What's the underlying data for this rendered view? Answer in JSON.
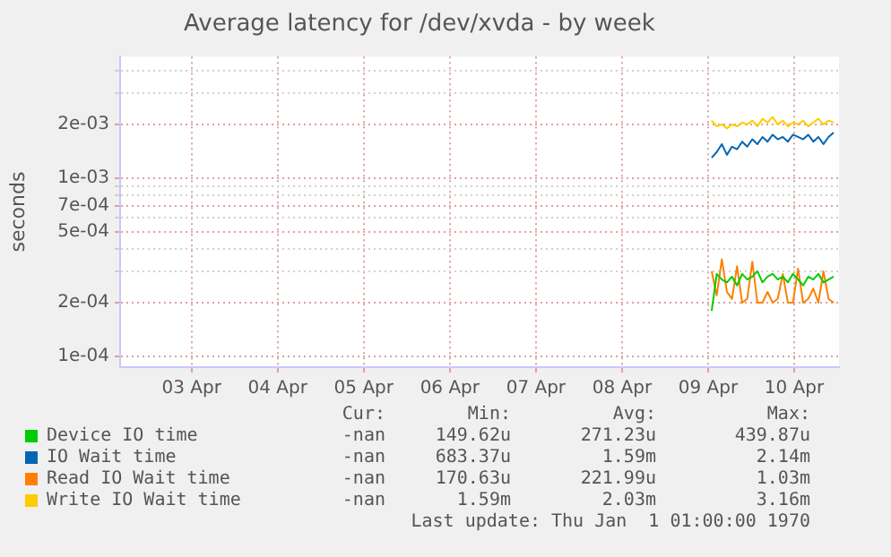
{
  "chart_data": {
    "type": "line",
    "title": "Average latency for /dev/xvda - by week",
    "ylabel": "seconds",
    "log": "y",
    "grid": true,
    "legend": "bottom",
    "marker": "none",
    "line_style": "solid",
    "xlim": [
      "--04-02T16:05",
      "--04-11T00:30"
    ],
    "xticks": [
      {
        "value": "--04-03T12:00",
        "label": "03 Apr"
      },
      {
        "value": "--04-04T12:00",
        "label": "04 Apr"
      },
      {
        "value": "--04-05T12:00",
        "label": "05 Apr"
      },
      {
        "value": "--04-06T12:00",
        "label": "06 Apr"
      },
      {
        "value": "--04-07T12:00",
        "label": "07 Apr"
      },
      {
        "value": "--04-08T12:00",
        "label": "08 Apr"
      },
      {
        "value": "--04-09T12:00",
        "label": "09 Apr"
      },
      {
        "value": "--04-10T12:00",
        "label": "10 Apr"
      }
    ],
    "ylim": [
      8.7e-05,
      0.0048
    ],
    "yticks": [
      {
        "value": 0.0001,
        "label": "1e-04"
      },
      {
        "value": 0.0002,
        "label": "2e-04"
      },
      {
        "value": 0.0003,
        "label": null
      },
      {
        "value": 0.0004,
        "label": null
      },
      {
        "value": 0.0005,
        "label": "5e-04"
      },
      {
        "value": 0.0006,
        "label": null
      },
      {
        "value": 0.0007,
        "label": "7e-04"
      },
      {
        "value": 0.0008,
        "label": null
      },
      {
        "value": 0.0009,
        "label": null
      },
      {
        "value": 0.001,
        "label": "1e-03"
      },
      {
        "value": 0.002,
        "label": "2e-03"
      },
      {
        "value": 0.003,
        "label": null
      },
      {
        "value": 0.004,
        "label": null
      }
    ],
    "x": [
      "--04-09T13:00",
      "--04-09T14:25",
      "--04-09T15:50",
      "--04-09T17:15",
      "--04-09T18:40",
      "--04-09T20:05",
      "--04-09T21:30",
      "--04-09T22:55",
      "--04-10T00:20",
      "--04-10T01:45",
      "--04-10T03:10",
      "--04-10T04:35",
      "--04-10T06:00",
      "--04-10T07:25",
      "--04-10T08:50",
      "--04-10T10:15",
      "--04-10T11:40",
      "--04-10T13:05",
      "--04-10T14:30",
      "--04-10T15:55",
      "--04-10T17:20",
      "--04-10T18:45",
      "--04-10T20:10",
      "--04-10T21:35",
      "--04-10T23:00"
    ],
    "series": [
      {
        "name": "Device IO time",
        "color": "#00cc00",
        "values": [
          0.00018,
          0.00029,
          0.00027,
          0.00026,
          0.00028,
          0.00025,
          0.00029,
          0.00027,
          0.00028,
          0.0003,
          0.00026,
          0.00028,
          0.00029,
          0.00027,
          0.00028,
          0.00026,
          0.00029,
          0.00027,
          0.00025,
          0.00028,
          0.00027,
          0.00029,
          0.00026,
          0.00027,
          0.00028
        ]
      },
      {
        "name": "IO Wait time",
        "color": "#0066b3",
        "values": [
          0.0013,
          0.0014,
          0.00155,
          0.00135,
          0.0015,
          0.00145,
          0.0016,
          0.0015,
          0.00165,
          0.00155,
          0.0017,
          0.0016,
          0.00175,
          0.00165,
          0.0017,
          0.0016,
          0.00175,
          0.0017,
          0.00165,
          0.00175,
          0.0016,
          0.0017,
          0.00155,
          0.0017,
          0.0018
        ]
      },
      {
        "name": "Read IO Wait time",
        "color": "#ff8000",
        "values": [
          0.0003,
          0.00022,
          0.00035,
          0.00023,
          0.00021,
          0.00032,
          0.0002,
          0.00021,
          0.00034,
          0.0002,
          0.0002,
          0.00023,
          0.0002,
          0.00021,
          0.00029,
          0.0002,
          0.0002,
          0.00031,
          0.0002,
          0.00021,
          0.00024,
          0.0002,
          0.0003,
          0.00021,
          0.0002
        ]
      },
      {
        "name": "Write IO Wait time",
        "color": "#ffcc00",
        "values": [
          0.0021,
          0.00195,
          0.002,
          0.0019,
          0.002,
          0.00195,
          0.00205,
          0.002,
          0.0021,
          0.00195,
          0.00215,
          0.00205,
          0.0022,
          0.002,
          0.0021,
          0.00195,
          0.00205,
          0.002,
          0.0021,
          0.00195,
          0.00205,
          0.00215,
          0.002,
          0.0021,
          0.00205
        ]
      }
    ],
    "annotations": [
      "Cur:",
      "Min:",
      "Avg:",
      "Max:",
      "-nan",
      "149.62u",
      "271.23u",
      "439.87u",
      "-nan",
      "683.37u",
      "1.59m",
      "2.14m",
      "-nan",
      "170.63u",
      "221.99u",
      "1.03m",
      "-nan",
      "1.59m",
      "2.03m",
      "3.16m",
      "Last update: Thu Jan  1 01:00:00 1970"
    ]
  }
}
